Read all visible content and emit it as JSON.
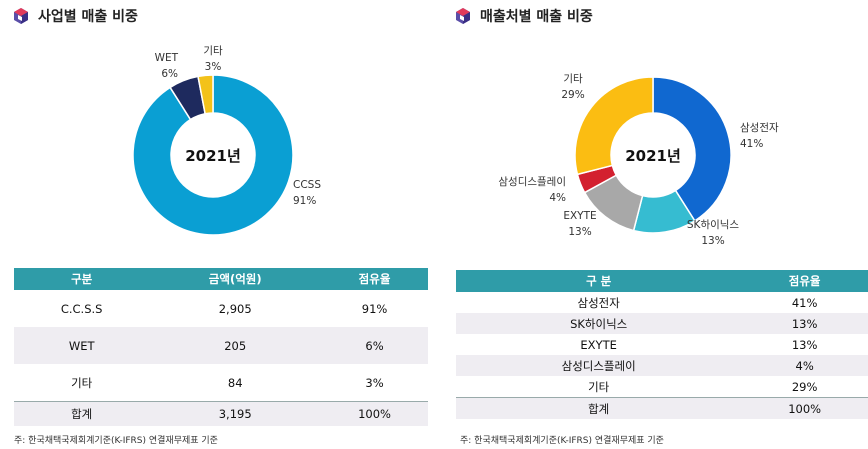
{
  "left": {
    "title": "사업별 매출 비중",
    "center_label": "2021년",
    "table": {
      "headers": [
        "구분",
        "금액(억원)",
        "점유율"
      ],
      "rows": [
        [
          "C.C.S.S",
          "2,905",
          "91%"
        ],
        [
          "WET",
          "205",
          "6%"
        ],
        [
          "기타",
          "84",
          "3%"
        ]
      ],
      "total": [
        "합계",
        "3,195",
        "100%"
      ]
    },
    "note": "주: 한국채택국제회계기준(K-IFRS) 연결재무제표 기준"
  },
  "right": {
    "title": "매출처별 매출 비중",
    "center_label": "2021년",
    "table": {
      "headers": [
        "구  분",
        "점유율"
      ],
      "rows": [
        [
          "삼성전자",
          "41%"
        ],
        [
          "SK하이닉스",
          "13%"
        ],
        [
          "EXYTE",
          "13%"
        ],
        [
          "삼성디스플레이",
          "4%"
        ],
        [
          "기타",
          "29%"
        ]
      ],
      "total": [
        "합계",
        "100%"
      ]
    },
    "note": "주: 한국채택국제회계기준(K-IFRS) 연결재무제표 기준"
  },
  "colors": {
    "header": "#2f9ca8",
    "ccss": "#0a9fd3",
    "wet": "#1e2a5e",
    "etc_left": "#f3c21a",
    "samsung": "#1068d0",
    "sk": "#36bcd1",
    "exyte": "#a8a8a8",
    "samsung_display": "#d3202f",
    "etc_right": "#fbbd12"
  },
  "chart_data": [
    {
      "type": "pie",
      "title": "사업별 매출 비중",
      "center_label": "2021년",
      "slices": [
        {
          "label": "CCSS",
          "value": 91,
          "color": "#0a9fd3"
        },
        {
          "label": "WET",
          "value": 6,
          "color": "#1e2a5e"
        },
        {
          "label": "기타",
          "value": 3,
          "color": "#f3c21a"
        }
      ]
    },
    {
      "type": "pie",
      "title": "매출처별 매출 비중",
      "center_label": "2021년",
      "slices": [
        {
          "label": "삼성전자",
          "value": 41,
          "color": "#1068d0"
        },
        {
          "label": "SK하이닉스",
          "value": 13,
          "color": "#36bcd1"
        },
        {
          "label": "EXYTE",
          "value": 13,
          "color": "#a8a8a8"
        },
        {
          "label": "삼성디스플레이",
          "value": 4,
          "color": "#d3202f"
        },
        {
          "label": "기타",
          "value": 29,
          "color": "#fbbd12"
        }
      ]
    }
  ]
}
